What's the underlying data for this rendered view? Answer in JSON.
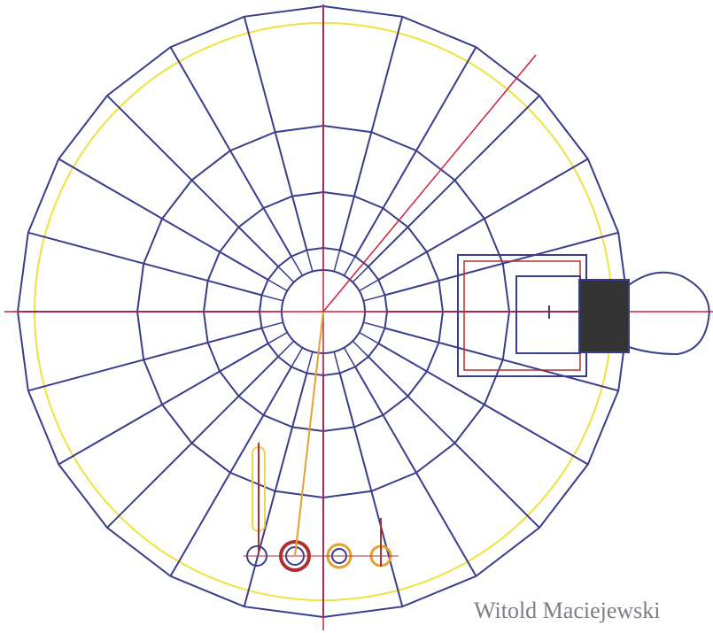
{
  "signature": "Witold Maciejewski"
}
